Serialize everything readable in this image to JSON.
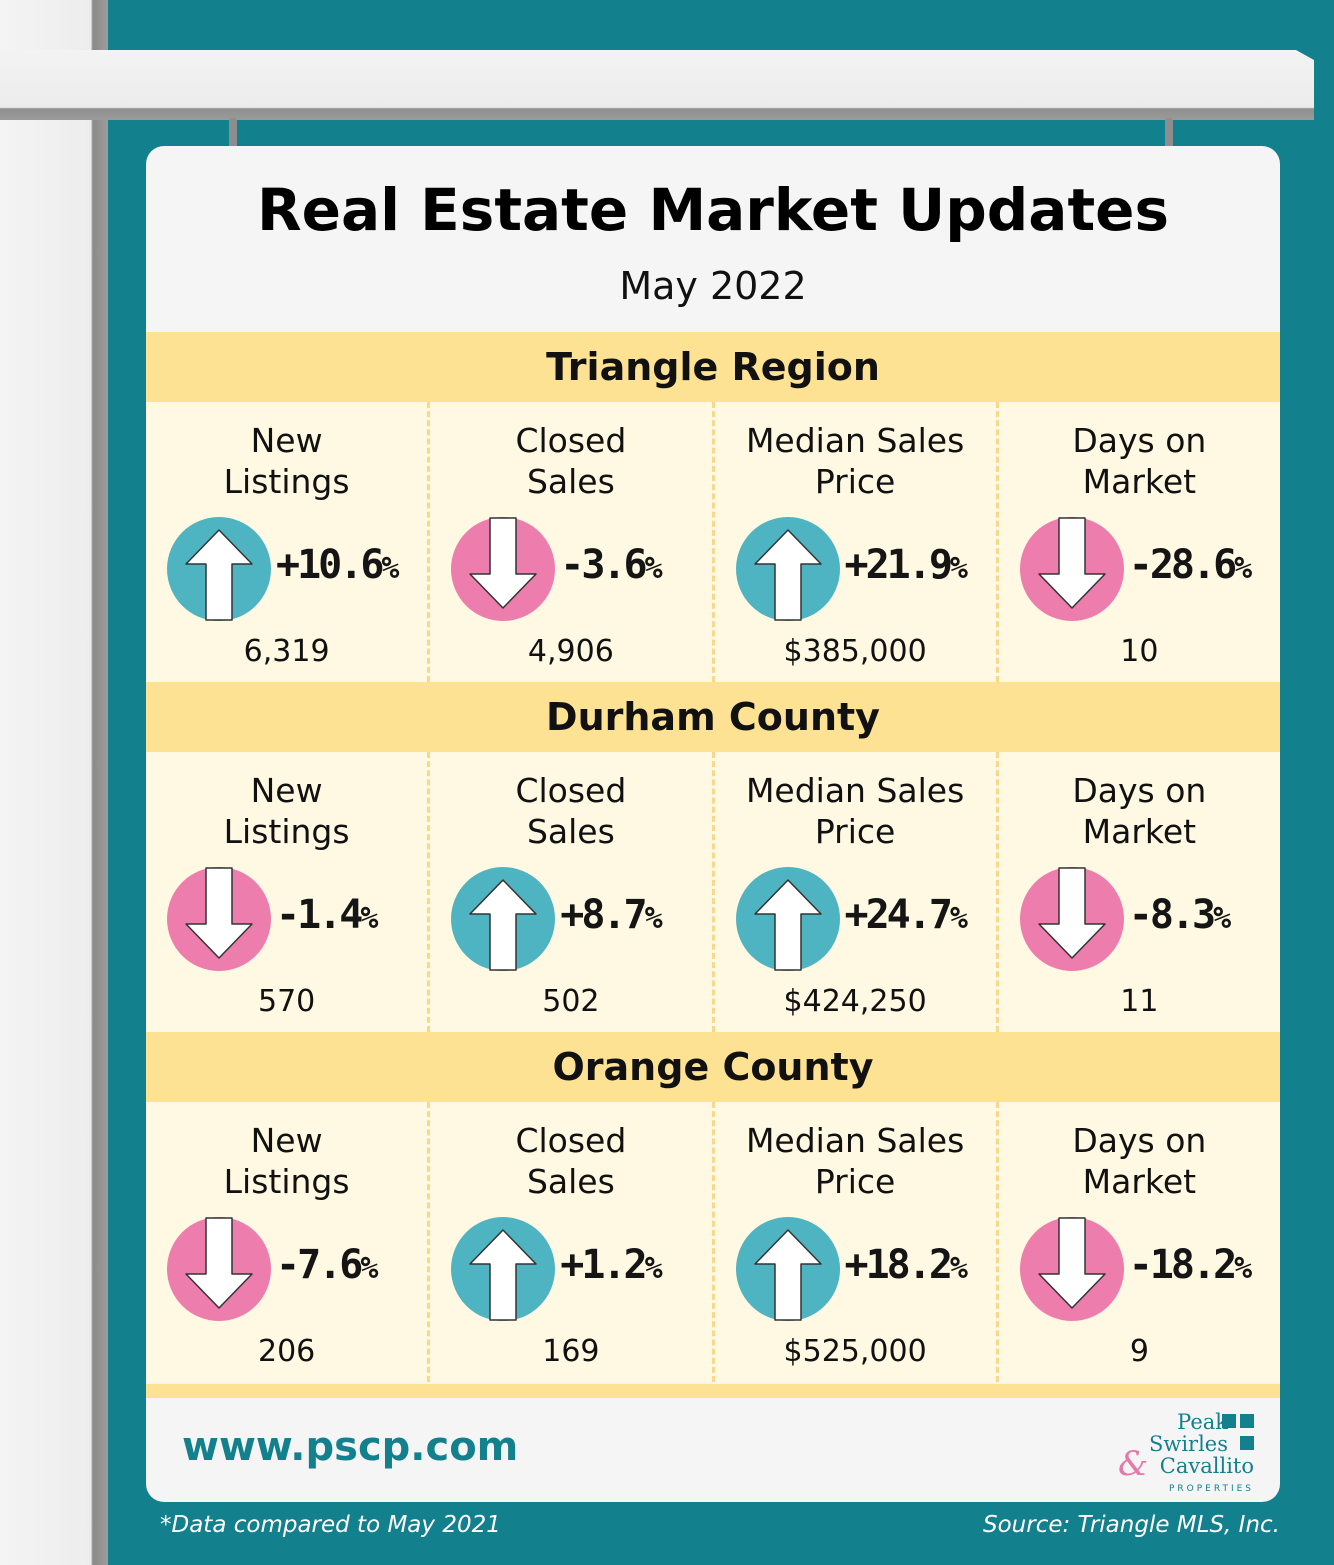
{
  "title": "Real Estate Market Updates",
  "subtitle": "May 2022",
  "colors": {
    "background": "#13808e",
    "header": "#fde293",
    "panel": "#fff8e2",
    "up": "#4fb4c1",
    "down": "#ec7dac",
    "url": "#13808e"
  },
  "regions": [
    {
      "name": "Triangle Region",
      "metrics": [
        {
          "label": "New\nListings",
          "change": "+10.6",
          "direction": "up",
          "value": "6,319"
        },
        {
          "label": "Closed\nSales",
          "change": "-3.6",
          "direction": "down",
          "value": "4,906"
        },
        {
          "label": "Median Sales\nPrice",
          "change": "+21.9",
          "direction": "up",
          "value": "$385,000"
        },
        {
          "label": "Days on\nMarket",
          "change": "-28.6",
          "direction": "down",
          "value": "10"
        }
      ]
    },
    {
      "name": "Durham County",
      "metrics": [
        {
          "label": "New\nListings",
          "change": "-1.4",
          "direction": "down",
          "value": "570"
        },
        {
          "label": "Closed\nSales",
          "change": "+8.7",
          "direction": "up",
          "value": "502"
        },
        {
          "label": "Median Sales\nPrice",
          "change": "+24.7",
          "direction": "up",
          "value": "$424,250"
        },
        {
          "label": "Days on\nMarket",
          "change": "-8.3",
          "direction": "down",
          "value": "11"
        }
      ]
    },
    {
      "name": "Orange County",
      "metrics": [
        {
          "label": "New\nListings",
          "change": "-7.6",
          "direction": "down",
          "value": "206"
        },
        {
          "label": "Closed\nSales",
          "change": "+1.2",
          "direction": "up",
          "value": "169"
        },
        {
          "label": "Median Sales\nPrice",
          "change": "+18.2",
          "direction": "up",
          "value": "$525,000"
        },
        {
          "label": "Days on\nMarket",
          "change": "-18.2",
          "direction": "down",
          "value": "9"
        }
      ]
    }
  ],
  "percent_symbol": "%",
  "website": "www.pscp.com",
  "logo": {
    "line1": "Peak",
    "line2": "Swirles",
    "amp": "&",
    "line3": "Cavallito",
    "line4": "PROPERTIES"
  },
  "footnote_left": "*Data compared to May 2021",
  "footnote_right": "Source: Triangle MLS, Inc."
}
